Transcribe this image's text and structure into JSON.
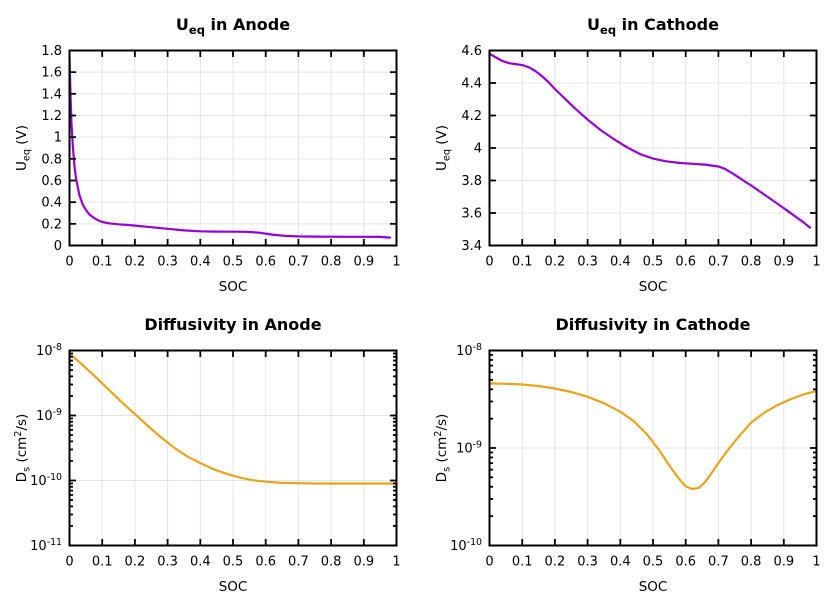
{
  "figure": {
    "background": "#ffffff",
    "grid_color": "#e4e4e4",
    "axis_color": "#000000",
    "text_color": "#000000"
  },
  "chart_data": [
    {
      "id": "ueq-anode",
      "type": "line",
      "title_plain": "U_eq in Anode",
      "title_segments": [
        {
          "t": "U"
        },
        {
          "t": "eq",
          "s": "sub"
        },
        {
          "t": " in Anode"
        }
      ],
      "xlabel": "SOC",
      "ylabel_plain": "U_eq (V)",
      "ylabel_segments": [
        {
          "t": "U"
        },
        {
          "t": "eq",
          "s": "sub"
        },
        {
          "t": " (V)"
        }
      ],
      "x_scale": "linear",
      "y_scale": "linear",
      "xlim": [
        0,
        1
      ],
      "ylim": [
        0,
        1.8
      ],
      "grid": true,
      "legend": "none",
      "color": "#9400d3",
      "x_ticks": [
        {
          "v": 0,
          "label": "0"
        },
        {
          "v": 0.1,
          "label": "0.1"
        },
        {
          "v": 0.2,
          "label": "0.2"
        },
        {
          "v": 0.3,
          "label": "0.3"
        },
        {
          "v": 0.4,
          "label": "0.4"
        },
        {
          "v": 0.5,
          "label": "0.5"
        },
        {
          "v": 0.6,
          "label": "0.6"
        },
        {
          "v": 0.7,
          "label": "0.7"
        },
        {
          "v": 0.8,
          "label": "0.8"
        },
        {
          "v": 0.9,
          "label": "0.9"
        },
        {
          "v": 1,
          "label": "1"
        }
      ],
      "y_ticks": [
        {
          "v": 0,
          "label": "0"
        },
        {
          "v": 0.2,
          "label": "0.2"
        },
        {
          "v": 0.4,
          "label": "0.4"
        },
        {
          "v": 0.6,
          "label": "0.6"
        },
        {
          "v": 0.8,
          "label": "0.8"
        },
        {
          "v": 1,
          "label": "1"
        },
        {
          "v": 1.2,
          "label": "1.2"
        },
        {
          "v": 1.4,
          "label": "1.4"
        },
        {
          "v": 1.6,
          "label": "1.6"
        },
        {
          "v": 1.8,
          "label": "1.8"
        }
      ],
      "points": [
        [
          0,
          1.75
        ],
        [
          0.003,
          1.38
        ],
        [
          0.006,
          1.12
        ],
        [
          0.01,
          0.92
        ],
        [
          0.015,
          0.74
        ],
        [
          0.02,
          0.62
        ],
        [
          0.03,
          0.47
        ],
        [
          0.04,
          0.38
        ],
        [
          0.05,
          0.33
        ],
        [
          0.06,
          0.29
        ],
        [
          0.07,
          0.265
        ],
        [
          0.08,
          0.245
        ],
        [
          0.09,
          0.23
        ],
        [
          0.1,
          0.218
        ],
        [
          0.12,
          0.205
        ],
        [
          0.15,
          0.196
        ],
        [
          0.18,
          0.189
        ],
        [
          0.2,
          0.184
        ],
        [
          0.25,
          0.169
        ],
        [
          0.3,
          0.154
        ],
        [
          0.35,
          0.139
        ],
        [
          0.4,
          0.131
        ],
        [
          0.45,
          0.128
        ],
        [
          0.5,
          0.127
        ],
        [
          0.54,
          0.126
        ],
        [
          0.58,
          0.118
        ],
        [
          0.62,
          0.101
        ],
        [
          0.66,
          0.089
        ],
        [
          0.7,
          0.084
        ],
        [
          0.75,
          0.082
        ],
        [
          0.8,
          0.081
        ],
        [
          0.85,
          0.08
        ],
        [
          0.9,
          0.08
        ],
        [
          0.95,
          0.079
        ],
        [
          0.98,
          0.073
        ]
      ]
    },
    {
      "id": "ueq-cathode",
      "type": "line",
      "title_plain": "U_eq in Cathode",
      "title_segments": [
        {
          "t": "U"
        },
        {
          "t": "eq",
          "s": "sub"
        },
        {
          "t": " in Cathode"
        }
      ],
      "xlabel": "SOC",
      "ylabel_plain": "U_eq (V)",
      "ylabel_segments": [
        {
          "t": "U"
        },
        {
          "t": "eq",
          "s": "sub"
        },
        {
          "t": " (V)"
        }
      ],
      "x_scale": "linear",
      "y_scale": "linear",
      "xlim": [
        0,
        1
      ],
      "ylim": [
        3.4,
        4.6
      ],
      "grid": true,
      "legend": "none",
      "color": "#9400d3",
      "x_ticks": [
        {
          "v": 0,
          "label": "0"
        },
        {
          "v": 0.1,
          "label": "0.1"
        },
        {
          "v": 0.2,
          "label": "0.2"
        },
        {
          "v": 0.3,
          "label": "0.3"
        },
        {
          "v": 0.4,
          "label": "0.4"
        },
        {
          "v": 0.5,
          "label": "0.5"
        },
        {
          "v": 0.6,
          "label": "0.6"
        },
        {
          "v": 0.7,
          "label": "0.7"
        },
        {
          "v": 0.8,
          "label": "0.8"
        },
        {
          "v": 0.9,
          "label": "0.9"
        },
        {
          "v": 1,
          "label": "1"
        }
      ],
      "y_ticks": [
        {
          "v": 3.4,
          "label": "3.4"
        },
        {
          "v": 3.6,
          "label": "3.6"
        },
        {
          "v": 3.8,
          "label": "3.8"
        },
        {
          "v": 4,
          "label": "4"
        },
        {
          "v": 4.2,
          "label": "4.2"
        },
        {
          "v": 4.4,
          "label": "4.4"
        },
        {
          "v": 4.6,
          "label": "4.6"
        }
      ],
      "points": [
        [
          0,
          4.58
        ],
        [
          0.02,
          4.557
        ],
        [
          0.04,
          4.535
        ],
        [
          0.06,
          4.522
        ],
        [
          0.08,
          4.516
        ],
        [
          0.1,
          4.51
        ],
        [
          0.12,
          4.497
        ],
        [
          0.14,
          4.474
        ],
        [
          0.16,
          4.443
        ],
        [
          0.18,
          4.406
        ],
        [
          0.2,
          4.363
        ],
        [
          0.23,
          4.305
        ],
        [
          0.26,
          4.247
        ],
        [
          0.3,
          4.175
        ],
        [
          0.34,
          4.11
        ],
        [
          0.38,
          4.055
        ],
        [
          0.42,
          4.005
        ],
        [
          0.46,
          3.963
        ],
        [
          0.5,
          3.935
        ],
        [
          0.54,
          3.918
        ],
        [
          0.58,
          3.908
        ],
        [
          0.62,
          3.903
        ],
        [
          0.66,
          3.898
        ],
        [
          0.7,
          3.886
        ],
        [
          0.72,
          3.872
        ],
        [
          0.75,
          3.835
        ],
        [
          0.78,
          3.795
        ],
        [
          0.8,
          3.77
        ],
        [
          0.84,
          3.714
        ],
        [
          0.88,
          3.658
        ],
        [
          0.92,
          3.601
        ],
        [
          0.96,
          3.543
        ],
        [
          0.98,
          3.51
        ]
      ]
    },
    {
      "id": "diffusivity-anode",
      "type": "line",
      "title_plain": "Diffusivity in Anode",
      "title_segments": [
        {
          "t": "Diffusivity in Anode"
        }
      ],
      "xlabel": "SOC",
      "ylabel_plain": "D_s (cm^2/s)",
      "ylabel_segments": [
        {
          "t": "D"
        },
        {
          "t": "s",
          "s": "sub"
        },
        {
          "t": " (cm"
        },
        {
          "t": "2",
          "s": "sup"
        },
        {
          "t": "/s)"
        }
      ],
      "x_scale": "linear",
      "y_scale": "log",
      "xlim": [
        0,
        1
      ],
      "ylim": [
        1e-11,
        1e-08
      ],
      "grid": true,
      "legend": "none",
      "color": "#e9a31c",
      "x_ticks": [
        {
          "v": 0,
          "label": "0"
        },
        {
          "v": 0.1,
          "label": "0.1"
        },
        {
          "v": 0.2,
          "label": "0.2"
        },
        {
          "v": 0.3,
          "label": "0.3"
        },
        {
          "v": 0.4,
          "label": "0.4"
        },
        {
          "v": 0.5,
          "label": "0.5"
        },
        {
          "v": 0.6,
          "label": "0.6"
        },
        {
          "v": 0.7,
          "label": "0.7"
        },
        {
          "v": 0.8,
          "label": "0.8"
        },
        {
          "v": 0.9,
          "label": "0.9"
        },
        {
          "v": 1,
          "label": "1"
        }
      ],
      "y_ticks": [
        {
          "v": 1e-08,
          "label": "10^-8",
          "exp": "-8"
        },
        {
          "v": 1e-09,
          "label": "10^-9",
          "exp": "-9"
        },
        {
          "v": 1e-10,
          "label": "10^-10",
          "exp": "-10"
        },
        {
          "v": 1e-11,
          "label": "10^-11",
          "exp": "-11"
        }
      ],
      "y_minor_ticks": true,
      "points": [
        [
          0,
          9e-09
        ],
        [
          0.04,
          6e-09
        ],
        [
          0.08,
          3.9e-09
        ],
        [
          0.12,
          2.5e-09
        ],
        [
          0.16,
          1.6e-09
        ],
        [
          0.2,
          1.05e-09
        ],
        [
          0.24,
          6.9e-10
        ],
        [
          0.28,
          4.6e-10
        ],
        [
          0.32,
          3.2e-10
        ],
        [
          0.36,
          2.35e-10
        ],
        [
          0.4,
          1.85e-10
        ],
        [
          0.44,
          1.5e-10
        ],
        [
          0.48,
          1.27e-10
        ],
        [
          0.52,
          1.11e-10
        ],
        [
          0.56,
          1.01e-10
        ],
        [
          0.6,
          9.6e-11
        ],
        [
          0.65,
          9.2e-11
        ],
        [
          0.7,
          9.1e-11
        ],
        [
          0.75,
          9e-11
        ],
        [
          0.8,
          9e-11
        ],
        [
          0.85,
          9e-11
        ],
        [
          0.9,
          9e-11
        ],
        [
          0.95,
          9e-11
        ],
        [
          1,
          9e-11
        ]
      ]
    },
    {
      "id": "diffusivity-cathode",
      "type": "line",
      "title_plain": "Diffusivity in Cathode",
      "title_segments": [
        {
          "t": "Diffusivity in Cathode"
        }
      ],
      "xlabel": "SOC",
      "ylabel_plain": "D_s (cm^2/s)",
      "ylabel_segments": [
        {
          "t": "D"
        },
        {
          "t": "s",
          "s": "sub"
        },
        {
          "t": " (cm"
        },
        {
          "t": "2",
          "s": "sup"
        },
        {
          "t": "/s)"
        }
      ],
      "x_scale": "linear",
      "y_scale": "log",
      "xlim": [
        0,
        1
      ],
      "ylim": [
        1e-10,
        1e-08
      ],
      "grid": true,
      "legend": "none",
      "color": "#e9a31c",
      "x_ticks": [
        {
          "v": 0,
          "label": "0"
        },
        {
          "v": 0.1,
          "label": "0.1"
        },
        {
          "v": 0.2,
          "label": "0.2"
        },
        {
          "v": 0.3,
          "label": "0.3"
        },
        {
          "v": 0.4,
          "label": "0.4"
        },
        {
          "v": 0.5,
          "label": "0.5"
        },
        {
          "v": 0.6,
          "label": "0.6"
        },
        {
          "v": 0.7,
          "label": "0.7"
        },
        {
          "v": 0.8,
          "label": "0.8"
        },
        {
          "v": 0.9,
          "label": "0.9"
        },
        {
          "v": 1,
          "label": "1"
        }
      ],
      "y_ticks": [
        {
          "v": 1e-08,
          "label": "10^-8",
          "exp": "-8"
        },
        {
          "v": 1e-09,
          "label": "10^-9",
          "exp": "-9"
        },
        {
          "v": 1e-10,
          "label": "10^-10",
          "exp": "-10"
        }
      ],
      "y_minor_ticks": true,
      "points": [
        [
          0,
          4.6e-09
        ],
        [
          0.05,
          4.56e-09
        ],
        [
          0.1,
          4.48e-09
        ],
        [
          0.15,
          4.32e-09
        ],
        [
          0.2,
          4.08e-09
        ],
        [
          0.25,
          3.75e-09
        ],
        [
          0.3,
          3.35e-09
        ],
        [
          0.35,
          2.88e-09
        ],
        [
          0.4,
          2.35e-09
        ],
        [
          0.44,
          1.9e-09
        ],
        [
          0.48,
          1.4e-09
        ],
        [
          0.52,
          9.4e-10
        ],
        [
          0.55,
          6.6e-10
        ],
        [
          0.58,
          4.8e-10
        ],
        [
          0.6,
          4.05e-10
        ],
        [
          0.62,
          3.8e-10
        ],
        [
          0.64,
          3.9e-10
        ],
        [
          0.66,
          4.5e-10
        ],
        [
          0.68,
          5.6e-10
        ],
        [
          0.7,
          7e-10
        ],
        [
          0.73,
          9.6e-10
        ],
        [
          0.76,
          1.28e-09
        ],
        [
          0.8,
          1.82e-09
        ],
        [
          0.84,
          2.3e-09
        ],
        [
          0.88,
          2.75e-09
        ],
        [
          0.92,
          3.15e-09
        ],
        [
          0.96,
          3.55e-09
        ],
        [
          1,
          3.85e-09
        ]
      ]
    }
  ]
}
